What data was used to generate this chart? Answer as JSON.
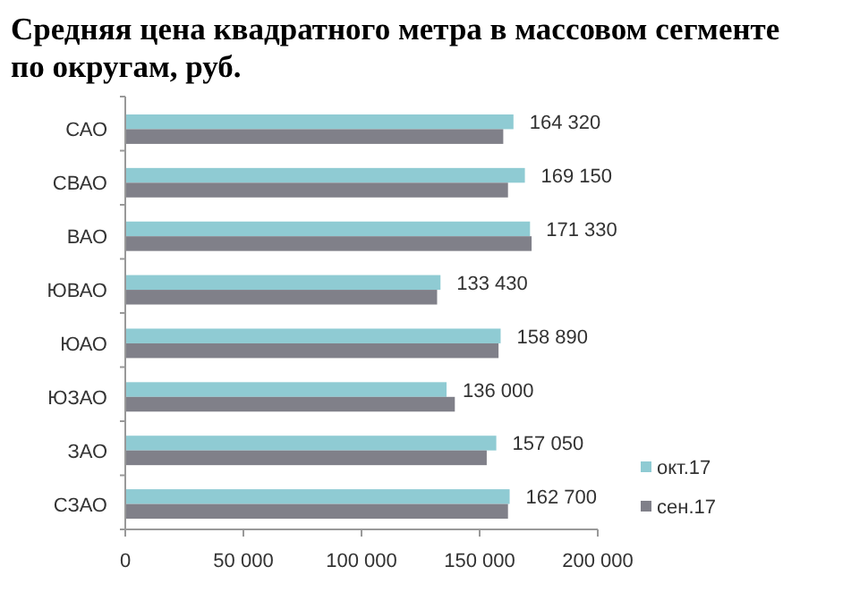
{
  "chart_data": {
    "type": "bar",
    "orientation": "horizontal",
    "title": "Средняя цена квадратного метра в массовом сегменте по округам, руб.",
    "categories": [
      "САО",
      "СВАО",
      "ВАО",
      "ЮВАО",
      "ЮАО",
      "ЮЗАО",
      "ЗАО",
      "СЗАО"
    ],
    "series": [
      {
        "name": "окт.17",
        "color": "#8fcbd3",
        "values": [
          164320,
          169150,
          171330,
          133430,
          158890,
          136000,
          157050,
          162700
        ],
        "value_labels": [
          "164 320",
          "169 150",
          "171 330",
          "133 430",
          "158 890",
          "136 000",
          "157 050",
          "162 700"
        ]
      },
      {
        "name": "сен.17",
        "color": "#808089",
        "values": [
          160000,
          162000,
          172000,
          132000,
          158000,
          139500,
          153000,
          162000
        ]
      }
    ],
    "xlim": [
      0,
      200000
    ],
    "xticks": [
      {
        "value": 0,
        "label": "0"
      },
      {
        "value": 50000,
        "label": "50 000"
      },
      {
        "value": 100000,
        "label": "100 000"
      },
      {
        "value": 150000,
        "label": "150 000"
      },
      {
        "value": 200000,
        "label": "200 000"
      }
    ],
    "grid": false,
    "legend": "bottom right"
  }
}
